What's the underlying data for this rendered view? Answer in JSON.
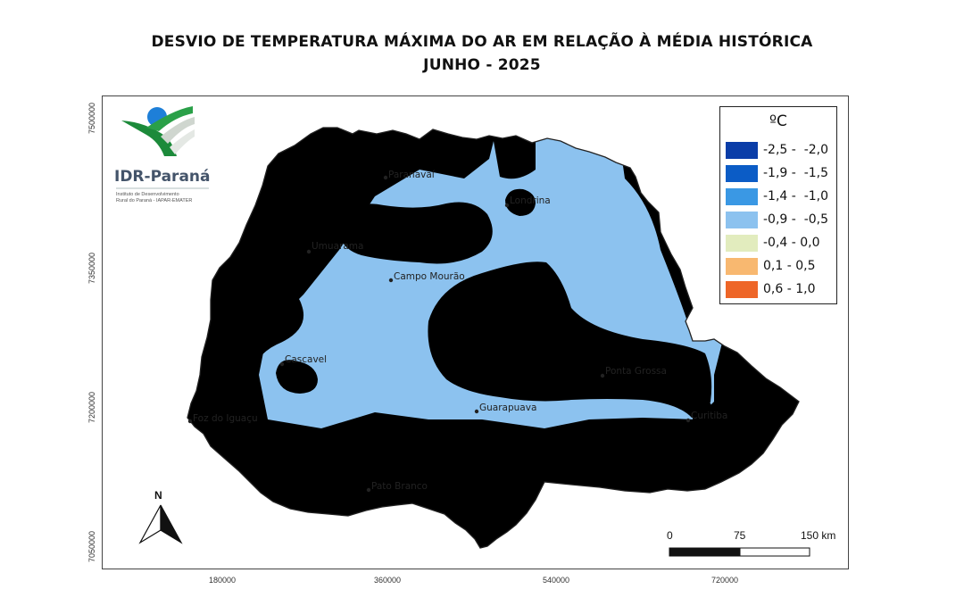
{
  "title": "DESVIO DE TEMPERATURA MÁXIMA DO AR EM RELAÇÃO À MÉDIA HISTÓRICA",
  "subtitle": "JUNHO - 2025",
  "logo": {
    "name": "IDR-Paraná",
    "subtitle_line1": "Instituto de Desenvolvimento",
    "subtitle_line2": "Rural do Paraná - IAPAR-EMATER"
  },
  "legend": {
    "unit": "ºC",
    "classes": [
      {
        "label": "-2,5 -  -2,0",
        "color": "#0a3da8"
      },
      {
        "label": "-1,9 -  -1,5",
        "color": "#0b5cc6"
      },
      {
        "label": "-1,4 -  -1,0",
        "color": "#3a98e4"
      },
      {
        "label": "-0,9 -  -0,5",
        "color": "#8cc2ef"
      },
      {
        "label": "-0,4 - 0,0",
        "color": "#e2ecbe"
      },
      {
        "label": "0,1 - 0,5",
        "color": "#f8b870"
      },
      {
        "label": "0,6 - 1,0",
        "color": "#ee6628"
      }
    ]
  },
  "cities": [
    {
      "name": "Paranavaí"
    },
    {
      "name": "Londrina"
    },
    {
      "name": "Umuarama"
    },
    {
      "name": "Campo Mourão"
    },
    {
      "name": "Cascavel"
    },
    {
      "name": "Ponta Grossa"
    },
    {
      "name": "Guarapuava"
    },
    {
      "name": "Curitiba"
    },
    {
      "name": "Foz do Iguaçu"
    },
    {
      "name": "Pato Branco"
    }
  ],
  "axes": {
    "y_ticks": [
      "7500000",
      "7350000",
      "7200000",
      "7050000"
    ],
    "x_ticks": [
      "180000",
      "360000",
      "540000",
      "720000"
    ]
  },
  "north_arrow": {
    "label": "N"
  },
  "scale_bar": {
    "labels": [
      "0",
      "75",
      "150 km"
    ]
  }
}
